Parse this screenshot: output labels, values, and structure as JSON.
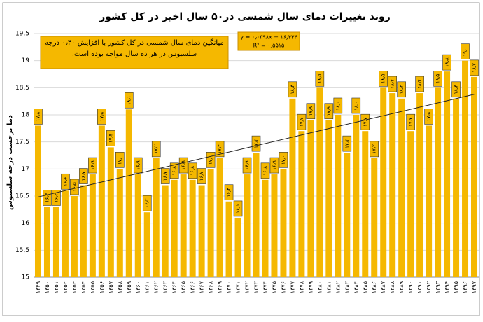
{
  "chart_data": {
    "type": "bar",
    "title": "روند تغییرات دمای سال شمسی در۵۰ سال اخیر در کل کشور",
    "y_label": "دما برحسب درجه سلسیوس",
    "annotations": [
      "میانگین دمای سال شمسی در کل کشور با افزایش ۰٫۴۰ درجه سلسیوس در هر ده سال مواجه بوده است.",
      "y = ۰٫۰۳۹۸x + ۱۶٫۴۴۴",
      "R² = ۰٫۵۵۱۵"
    ],
    "categories": [
      "۱۳۴۹",
      "۱۳۵۰",
      "۱۳۵۱",
      "۱۳۵۲",
      "۱۳۵۳",
      "۱۳۵۴",
      "۱۳۵۵",
      "۱۳۵۶",
      "۱۳۵۷",
      "۱۳۵۸",
      "۱۳۵۹",
      "۱۳۶۰",
      "۱۳۶۱",
      "۱۳۶۲",
      "۱۳۶۳",
      "۱۳۶۴",
      "۱۳۶۵",
      "۱۳۶۶",
      "۱۳۶۷",
      "۱۳۶۸",
      "۱۳۶۹",
      "۱۳۷۰",
      "۱۳۷۱",
      "۱۳۷۲",
      "۱۳۷۳",
      "۱۳۷۴",
      "۱۳۷۵",
      "۱۳۷۶",
      "۱۳۷۷",
      "۱۳۷۸",
      "۱۳۷۹",
      "۱۳۸۰",
      "۱۳۸۱",
      "۱۳۸۲",
      "۱۳۸۳",
      "۱۳۸۴",
      "۱۳۸۵",
      "۱۳۸۶",
      "۱۳۸۷",
      "۱۳۸۸",
      "۱۳۸۹",
      "۱۳۹۰",
      "۱۳۹۱",
      "۱۳۹۲",
      "۱۳۹۳",
      "۱۳۹۴",
      "۱۳۹۵",
      "۱۳۹۶",
      "۱۳۹۷"
    ],
    "values": [
      17.8,
      16.3,
      16.3,
      16.6,
      16.5,
      16.7,
      16.9,
      17.8,
      17.4,
      17.0,
      18.1,
      16.9,
      16.2,
      17.2,
      16.7,
      16.8,
      16.9,
      16.8,
      16.7,
      17.0,
      17.2,
      16.4,
      16.1,
      16.9,
      17.3,
      16.8,
      16.9,
      17.0,
      18.3,
      17.7,
      17.9,
      18.5,
      17.9,
      18.0,
      17.3,
      18.0,
      17.7,
      17.2,
      18.5,
      18.4,
      18.3,
      17.7,
      18.4,
      17.8,
      18.5,
      18.8,
      18.3,
      19.0,
      18.7
    ],
    "value_labels": [
      "۱۷٫۸",
      "۱۶٫۳",
      "۱۶٫۳",
      "۱۶٫۶",
      "۱۶٫۵",
      "۱۶٫۷",
      "۱۶٫۹",
      "۱۷٫۸",
      "۱۷٫۴",
      "۱۷٫۰",
      "۱۸٫۱",
      "۱۶٫۹",
      "۱۶٫۲",
      "۱۷٫۲",
      "۱۶٫۷",
      "۱۶٫۸",
      "۱۶٫۹",
      "۱۶٫۸",
      "۱۶٫۷",
      "۱۷٫۰",
      "۱۷٫۲",
      "۱۶٫۴",
      "۱۶٫۱",
      "۱۶٫۹",
      "۱۷٫۳",
      "۱۶٫۸",
      "۱۶٫۹",
      "۱۷٫۰",
      "۱۸٫۳",
      "۱۷٫۷",
      "۱۷٫۹",
      "۱۸٫۵",
      "۱۷٫۹",
      "۱۸٫۰",
      "۱۷٫۳",
      "۱۸٫۰",
      "۱۷٫۷",
      "۱۷٫۲",
      "۱۸٫۵",
      "۱۸٫۴",
      "۱۸٫۳",
      "۱۷٫۷",
      "۱۸٫۴",
      "۱۷٫۸",
      "۱۸٫۵",
      "۱۸٫۸",
      "۱۸٫۳",
      "۱۹٫۰",
      "۱۸٫۷"
    ],
    "color": "#f5b800",
    "ylim": [
      15,
      19.5
    ],
    "yticks": [
      15,
      {
        "value": 15.5,
        "label": "15,5"
      },
      16,
      {
        "value": 16.5,
        "label": "16,5"
      },
      17,
      {
        "value": 17.5,
        "label": "17,5"
      },
      18,
      {
        "value": 18.5,
        "label": "18,5"
      },
      19,
      {
        "value": 19.5,
        "label": "19,5"
      }
    ],
    "grid": true
  }
}
